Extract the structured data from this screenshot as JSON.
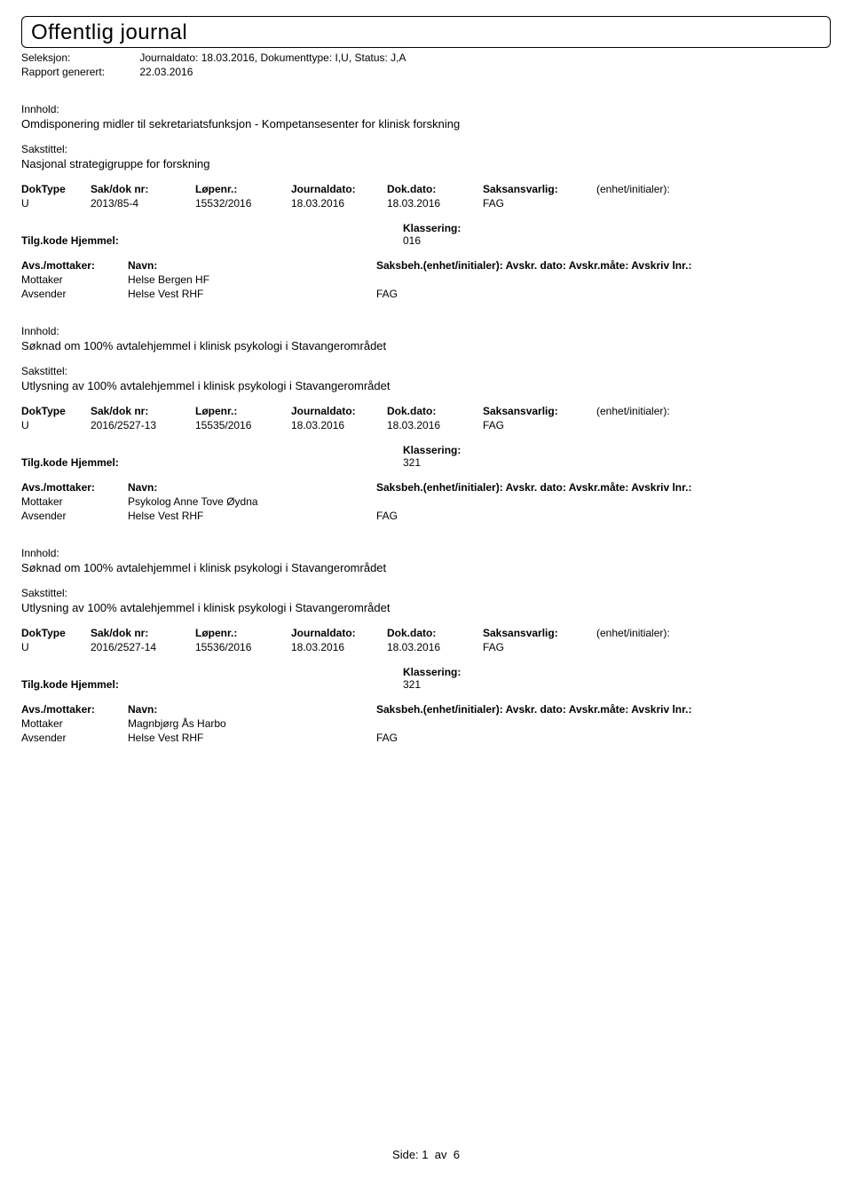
{
  "header": {
    "title": "Offentlig journal",
    "seleksjon_label": "Seleksjon:",
    "seleksjon_value": "Journaldato: 18.03.2016, Dokumenttype: I,U, Status: J,A",
    "rapport_label": "Rapport generert:",
    "rapport_value": "22.03.2016"
  },
  "labels": {
    "innhold": "Innhold:",
    "sakstittel": "Sakstittel:",
    "doktype": "DokType",
    "sakdok": "Sak/dok nr:",
    "lopenr": "Løpenr.:",
    "journaldato": "Journaldato:",
    "dokdato": "Dok.dato:",
    "saksansvarlig": "Saksansvarlig:",
    "enhet": "(enhet/initialer):",
    "klassering": "Klassering:",
    "tilgkode": "Tilg.kode",
    "hjemmel": "Hjemmel:",
    "avs_mottaker": "Avs./mottaker:",
    "navn": "Navn:",
    "saksbeh": "Saksbeh.(enhet/initialer): Avskr. dato:  Avskr.måte:  Avskriv lnr.:",
    "mottaker": "Mottaker",
    "avsender": "Avsender"
  },
  "entries": [
    {
      "innhold": "Omdisponering midler til sekretariatsfunksjon - Kompetansesenter for klinisk forskning",
      "sakstittel": "Nasjonal strategigruppe for forskning",
      "doktype": "U",
      "sakdok": "2013/85-4",
      "lopenr": "15532/2016",
      "journaldato": "18.03.2016",
      "dokdato": "18.03.2016",
      "saksansvarlig": "FAG",
      "klassering": "016",
      "parties": [
        {
          "role": "Mottaker",
          "name": "Helse Bergen HF",
          "unit": ""
        },
        {
          "role": "Avsender",
          "name": "Helse Vest RHF",
          "unit": "FAG"
        }
      ]
    },
    {
      "innhold": "Søknad om 100% avtalehjemmel i klinisk psykologi i Stavangerområdet",
      "sakstittel": "Utlysning av 100% avtalehjemmel i klinisk psykologi i Stavangerområdet",
      "doktype": "U",
      "sakdok": "2016/2527-13",
      "lopenr": "15535/2016",
      "journaldato": "18.03.2016",
      "dokdato": "18.03.2016",
      "saksansvarlig": "FAG",
      "klassering": "321",
      "parties": [
        {
          "role": "Mottaker",
          "name": "Psykolog Anne Tove Øydna",
          "unit": ""
        },
        {
          "role": "Avsender",
          "name": "Helse Vest RHF",
          "unit": "FAG"
        }
      ]
    },
    {
      "innhold": "Søknad om 100% avtalehjemmel i klinisk psykologi i Stavangerområdet",
      "sakstittel": "Utlysning av 100% avtalehjemmel i klinisk psykologi i Stavangerområdet",
      "doktype": "U",
      "sakdok": "2016/2527-14",
      "lopenr": "15536/2016",
      "journaldato": "18.03.2016",
      "dokdato": "18.03.2016",
      "saksansvarlig": "FAG",
      "klassering": "321",
      "parties": [
        {
          "role": "Mottaker",
          "name": "Magnbjørg Ås Harbo",
          "unit": ""
        },
        {
          "role": "Avsender",
          "name": "Helse Vest RHF",
          "unit": "FAG"
        }
      ]
    }
  ],
  "footer": {
    "side_label": "Side:",
    "page": "1",
    "av": "av",
    "total": "6"
  }
}
